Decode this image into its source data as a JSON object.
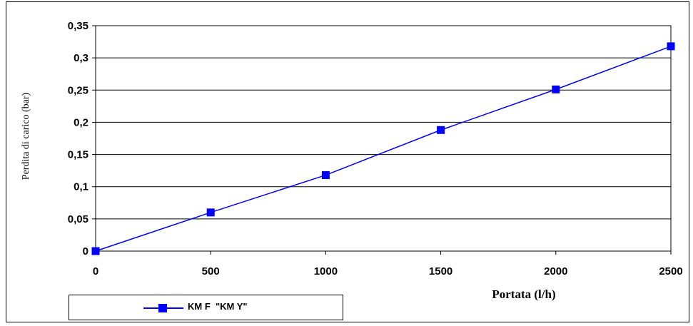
{
  "chart_data": {
    "type": "line",
    "title": "",
    "xlabel": "Portata (l/h)",
    "ylabel": "Perdita di carico (bar)",
    "x": [
      0,
      500,
      1000,
      1500,
      2000,
      2500
    ],
    "xticks": [
      "0",
      "500",
      "1000",
      "1500",
      "2000",
      "2500"
    ],
    "yticks": [
      "0",
      "0,05",
      "0,1",
      "0,15",
      "0,2",
      "0,25",
      "0,3",
      "0,35"
    ],
    "xlim": [
      0,
      2500
    ],
    "ylim": [
      0,
      0.35
    ],
    "grid": true,
    "legend_position": "bottom-left",
    "series": [
      {
        "name": "KM F  \"KM Y\"",
        "color": "#0000ff",
        "marker": "square",
        "values": [
          0,
          0.06,
          0.118,
          0.188,
          0.251,
          0.318
        ]
      }
    ]
  }
}
